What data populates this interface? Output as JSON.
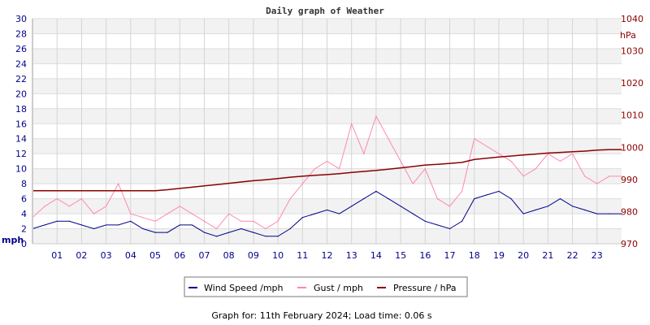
{
  "chart_data": {
    "type": "line",
    "title": "Daily graph of Weather",
    "left_axis": {
      "label": "mph",
      "range": [
        0,
        30
      ],
      "ticks": [
        0,
        2,
        4,
        6,
        8,
        10,
        12,
        14,
        16,
        18,
        20,
        22,
        24,
        26,
        28,
        30
      ]
    },
    "right_axis": {
      "label": "hPa",
      "range": [
        970,
        1040
      ],
      "ticks": [
        970,
        980,
        990,
        1000,
        1010,
        1020,
        1030,
        1040
      ]
    },
    "x_axis": {
      "range": [
        0,
        24
      ],
      "tick_labels": [
        "01",
        "02",
        "03",
        "04",
        "05",
        "06",
        "07",
        "08",
        "09",
        "10",
        "11",
        "12",
        "13",
        "14",
        "15",
        "16",
        "17",
        "18",
        "19",
        "20",
        "21",
        "22",
        "23"
      ]
    },
    "grid": true,
    "legend_position": "bottom",
    "x": [
      0,
      0.5,
      1,
      1.5,
      2,
      2.5,
      3,
      3.5,
      4,
      4.5,
      5,
      5.5,
      6,
      6.5,
      7,
      7.5,
      8,
      8.5,
      9,
      9.5,
      10,
      10.5,
      11,
      11.5,
      12,
      12.5,
      13,
      13.5,
      14,
      14.5,
      15,
      15.5,
      16,
      16.5,
      17,
      17.5,
      18,
      18.5,
      19,
      19.5,
      20,
      20.5,
      21,
      21.5,
      22,
      22.5,
      23,
      23.5,
      24
    ],
    "series": [
      {
        "name": "Wind Speed /mph",
        "axis": "left",
        "color": "#00008b",
        "values": [
          2,
          2.5,
          3,
          3,
          2.5,
          2,
          2.5,
          2.5,
          3,
          2,
          1.5,
          1.5,
          2.5,
          2.5,
          1.5,
          1,
          1.5,
          2,
          1.5,
          1,
          1,
          2,
          3.5,
          4,
          4.5,
          4,
          5,
          6,
          7,
          6,
          5,
          4,
          3,
          2.5,
          2,
          3,
          6,
          6.5,
          7,
          6,
          4,
          4.5,
          5,
          6,
          5,
          4.5,
          4,
          4,
          4
        ]
      },
      {
        "name": "Gust / mph",
        "axis": "left",
        "color": "#ff88b0",
        "values": [
          3.5,
          5,
          6,
          5,
          6,
          4,
          5,
          8,
          4,
          3.5,
          3,
          4,
          5,
          4,
          3,
          2,
          4,
          3,
          3,
          2,
          3,
          6,
          8,
          10,
          11,
          10,
          16,
          12,
          17,
          14,
          11,
          8,
          10,
          6,
          5,
          7,
          14,
          13,
          12,
          11,
          9,
          10,
          12,
          11,
          12,
          9,
          8,
          9,
          9
        ]
      },
      {
        "name": "Pressure / hPa",
        "axis": "right",
        "color": "#8b0000",
        "values": [
          986.5,
          986.5,
          986.5,
          986.5,
          986.5,
          986.5,
          986.5,
          986.5,
          986.5,
          986.5,
          986.5,
          986.8,
          987.2,
          987.6,
          988,
          988.4,
          988.8,
          989.2,
          989.6,
          989.9,
          990.3,
          990.7,
          991,
          991.3,
          991.5,
          991.8,
          992.2,
          992.5,
          992.8,
          993.2,
          993.6,
          994,
          994.5,
          994.7,
          995,
          995.3,
          996.2,
          996.6,
          997,
          997.3,
          997.6,
          997.9,
          998.2,
          998.4,
          998.6,
          998.8,
          999.1,
          999.3,
          999.3
        ]
      }
    ]
  },
  "legend": {
    "items": [
      "Wind Speed /mph",
      "Gust / mph",
      "Pressure / hPa"
    ]
  },
  "footer": "Graph for: 11th February 2024; Load time: 0.06 s"
}
